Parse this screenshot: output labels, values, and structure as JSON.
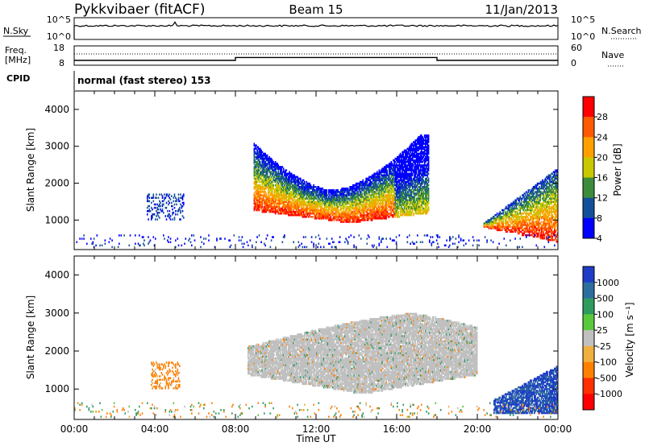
{
  "header": {
    "station": "Pykkvibaer (fitACF)",
    "beam": "Beam 15",
    "date": "11/Jan/2013"
  },
  "noise_panel": {
    "left_label": "N.Sky",
    "right_label": "N.Search",
    "left_ticks": [
      "10^5",
      "10^0"
    ],
    "right_ticks": [
      "10^5",
      "10^0"
    ]
  },
  "freq_panel": {
    "left_label_1": "Freq.",
    "left_label_2": "[MHz]",
    "right_label": "Nave",
    "left_ticks": [
      "18",
      "8"
    ],
    "right_ticks": [
      "60",
      "0"
    ]
  },
  "cpid": {
    "label": "CPID",
    "text": "normal (fast stereo) 153"
  },
  "power_panel": {
    "ylabel": "Slant Range [km]",
    "colorbar_label": "Power [dB]",
    "colorbar_ticks": [
      "28",
      "24",
      "20",
      "16",
      "12",
      "8",
      "4"
    ],
    "colors": [
      "#ff0000",
      "#ff5a00",
      "#ffa000",
      "#c8c800",
      "#3c8c3c",
      "#14509a",
      "#0000ff"
    ]
  },
  "velocity_panel": {
    "ylabel": "Slant Range [km]",
    "colorbar_label": "Velocity [m s⁻¹]",
    "colorbar_ticks": [
      "1000",
      "500",
      "100",
      "25",
      "-25",
      "-100",
      "-500",
      "-1000"
    ],
    "colors": [
      "#1e3cc8",
      "#2e6e9e",
      "#2e9a60",
      "#5ac83c",
      "#c0c0c0",
      "#f0b040",
      "#ff8000",
      "#ff3000",
      "#ff0000"
    ]
  },
  "x_axis": {
    "label": "Time UT",
    "ticks": [
      "00:00",
      "04:00",
      "08:00",
      "12:00",
      "16:00",
      "20:00",
      "00:00"
    ]
  },
  "chart_data": {
    "type": "heatmap",
    "x_unit": "hours UT",
    "xlim": [
      0,
      24
    ],
    "y_unit": "km",
    "ylim": [
      200,
      4500
    ],
    "y_ticks": [
      1000,
      2000,
      3000,
      4000
    ],
    "frequency": {
      "unit": "MHz",
      "ylim": [
        8,
        18
      ],
      "segments": [
        {
          "start": 0,
          "end": 8,
          "value": 10.5
        },
        {
          "start": 8,
          "end": 18,
          "value": 12.0
        },
        {
          "start": 18,
          "end": 24,
          "value": 10.5
        }
      ]
    },
    "power_regions": [
      {
        "name": "main-arc",
        "t_start": 8.9,
        "t_end": 17.6,
        "r_min": 800,
        "r_max": 3300,
        "peak_db": 30
      },
      {
        "name": "morning-patch",
        "t_start": 3.6,
        "t_end": 5.4,
        "r_min": 1000,
        "r_max": 1700,
        "peak_db": 10
      },
      {
        "name": "late-patch",
        "t_start": 20.3,
        "t_end": 24.0,
        "r_min": 350,
        "r_max": 2400,
        "peak_db": 30
      },
      {
        "name": "near-range",
        "t_start": 0,
        "t_end": 24,
        "r_min": 250,
        "r_max": 600,
        "peak_db": 8
      }
    ],
    "velocity_regions": [
      {
        "name": "main-arc",
        "t_start": 8.6,
        "t_end": 20.0,
        "r_min": 800,
        "r_max": 3200,
        "velocity_ms": 0
      },
      {
        "name": "morning-patch",
        "t_start": 3.8,
        "t_end": 5.2,
        "r_min": 1000,
        "r_max": 1700,
        "velocity_ms": -150
      },
      {
        "name": "late-patch",
        "t_start": 20.8,
        "t_end": 24.0,
        "r_min": 350,
        "r_max": 1600,
        "velocity_ms": 700
      }
    ]
  }
}
